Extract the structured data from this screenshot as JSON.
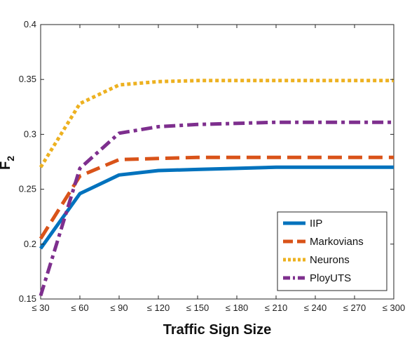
{
  "chart_data": {
    "type": "line",
    "title": "",
    "xlabel": "Traffic Sign Size",
    "ylabel": "F2",
    "ylabel_main": "F",
    "ylabel_sub": "2",
    "categories": [
      "≤ 30",
      "≤ 60",
      "≤ 90",
      "≤ 120",
      "≤ 150",
      "≤ 180",
      "≤ 210",
      "≤ 240",
      "≤ 270",
      "≤ 300"
    ],
    "ylim": [
      0.15,
      0.4
    ],
    "yticks": [
      "0.15",
      "0.2",
      "0.25",
      "0.3",
      "0.35",
      "0.4"
    ],
    "ytick_values": [
      0.15,
      0.2,
      0.25,
      0.3,
      0.35,
      0.4
    ],
    "grid": false,
    "legend_position": "bottom-right",
    "series": [
      {
        "name": "IIP",
        "color": "#0072BD",
        "style": "solid",
        "values": [
          0.196,
          0.246,
          0.263,
          0.267,
          0.268,
          0.269,
          0.27,
          0.27,
          0.27,
          0.27
        ]
      },
      {
        "name": "Markovians",
        "color": "#D95319",
        "style": "dashed",
        "values": [
          0.205,
          0.262,
          0.277,
          0.278,
          0.279,
          0.279,
          0.279,
          0.279,
          0.279,
          0.279
        ]
      },
      {
        "name": "Neurons",
        "color": "#EDB120",
        "style": "dotted",
        "values": [
          0.27,
          0.328,
          0.345,
          0.348,
          0.349,
          0.349,
          0.349,
          0.349,
          0.349,
          0.349
        ]
      },
      {
        "name": "PloyUTS",
        "color": "#7E2F8E",
        "style": "dashdot",
        "values": [
          0.153,
          0.269,
          0.301,
          0.307,
          0.309,
          0.31,
          0.311,
          0.311,
          0.311,
          0.311
        ]
      }
    ]
  }
}
